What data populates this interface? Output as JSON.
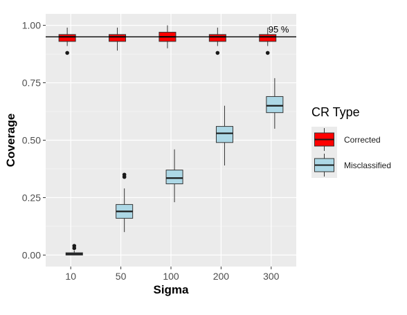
{
  "chart_data": {
    "type": "boxplot",
    "xlabel": "Sigma",
    "ylabel": "Coverage",
    "categories": [
      "10",
      "50",
      "100",
      "200",
      "300"
    ],
    "ylim": [
      -0.05,
      1.05
    ],
    "yticks": [
      0.0,
      0.25,
      0.5,
      0.75,
      1.0
    ],
    "ytick_labels": [
      "0.00",
      "0.25",
      "0.50",
      "0.75",
      "1.00"
    ],
    "grid": true,
    "legend": {
      "title": "CR Type",
      "position": "right"
    },
    "reference_line": {
      "y": 0.95,
      "label": "95 %"
    },
    "series": [
      {
        "name": "Corrected",
        "color": "#ff0000",
        "boxes": [
          {
            "category": "10",
            "min": 0.91,
            "q1": 0.93,
            "median": 0.95,
            "q3": 0.96,
            "max": 0.99,
            "outliers": [
              0.88
            ]
          },
          {
            "category": "50",
            "min": 0.89,
            "q1": 0.93,
            "median": 0.95,
            "q3": 0.96,
            "max": 0.99,
            "outliers": []
          },
          {
            "category": "100",
            "min": 0.9,
            "q1": 0.93,
            "median": 0.95,
            "q3": 0.97,
            "max": 1.0,
            "outliers": []
          },
          {
            "category": "200",
            "min": 0.91,
            "q1": 0.93,
            "median": 0.95,
            "q3": 0.96,
            "max": 0.99,
            "outliers": [
              0.88
            ]
          },
          {
            "category": "300",
            "min": 0.91,
            "q1": 0.93,
            "median": 0.95,
            "q3": 0.96,
            "max": 0.99,
            "outliers": [
              0.88
            ]
          }
        ]
      },
      {
        "name": "Misclassified",
        "color": "#add8e6",
        "boxes": [
          {
            "category": "10",
            "min": 0.0,
            "q1": 0.0,
            "median": 0.005,
            "q3": 0.01,
            "max": 0.02,
            "outliers": [
              0.03,
              0.04
            ]
          },
          {
            "category": "50",
            "min": 0.1,
            "q1": 0.16,
            "median": 0.19,
            "q3": 0.22,
            "max": 0.29,
            "outliers": [
              0.34,
              0.35
            ]
          },
          {
            "category": "100",
            "min": 0.23,
            "q1": 0.31,
            "median": 0.335,
            "q3": 0.37,
            "max": 0.46,
            "outliers": []
          },
          {
            "category": "200",
            "min": 0.39,
            "q1": 0.49,
            "median": 0.53,
            "q3": 0.56,
            "max": 0.65,
            "outliers": []
          },
          {
            "category": "300",
            "min": 0.55,
            "q1": 0.62,
            "median": 0.65,
            "q3": 0.69,
            "max": 0.77,
            "outliers": []
          }
        ]
      }
    ]
  }
}
